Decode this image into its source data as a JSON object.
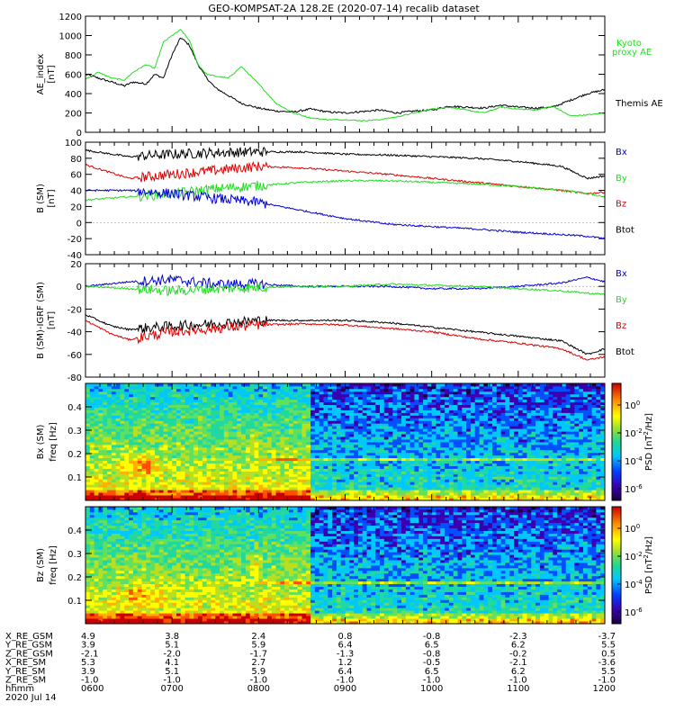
{
  "title": "GEO-KOMPSAT-2A 128.2E (2020-07-14) recalib dataset",
  "colors": {
    "black": "#000000",
    "blue": "#0000d8",
    "green": "#22dd22",
    "red": "#dd0000"
  },
  "time_axis": {
    "start_hour": 6,
    "end_hour": 12
  },
  "chart_data": [
    {
      "type": "line",
      "ylabel": "AE_index",
      "unit": "[nT]",
      "ylim": [
        0,
        1200
      ],
      "ytick_labels": [
        "0",
        "200",
        "400",
        "600",
        "800",
        "1000",
        "1200"
      ],
      "legend": [
        {
          "label": "Kyoto proxy AE",
          "color": "#22dd22",
          "line1": "Kyoto",
          "line2": "proxy AE"
        },
        {
          "label": "Themis AE",
          "color": "#000000"
        }
      ],
      "series": [
        {
          "name": "Themis AE",
          "color": "#000000",
          "x": [
            6.0,
            6.15,
            6.3,
            6.45,
            6.55,
            6.7,
            6.8,
            6.9,
            7.0,
            7.1,
            7.2,
            7.3,
            7.4,
            7.5,
            7.65,
            7.8,
            8.0,
            8.2,
            8.4,
            8.6,
            8.8,
            9.0,
            9.2,
            9.4,
            9.6,
            9.8,
            10.0,
            10.2,
            10.4,
            10.6,
            10.8,
            11.0,
            11.2,
            11.4,
            11.6,
            11.8,
            12.0
          ],
          "values": [
            600,
            560,
            520,
            480,
            520,
            500,
            600,
            560,
            800,
            980,
            900,
            700,
            560,
            460,
            380,
            300,
            250,
            220,
            210,
            240,
            210,
            200,
            215,
            230,
            200,
            220,
            230,
            270,
            260,
            250,
            280,
            260,
            250,
            260,
            330,
            400,
            440
          ]
        },
        {
          "name": "Kyoto proxy AE",
          "color": "#22dd22",
          "x": [
            6.0,
            6.15,
            6.3,
            6.45,
            6.55,
            6.7,
            6.8,
            6.9,
            7.0,
            7.1,
            7.2,
            7.3,
            7.4,
            7.5,
            7.65,
            7.8,
            8.0,
            8.2,
            8.4,
            8.6,
            8.8,
            9.0,
            9.2,
            9.4,
            9.6,
            9.8,
            10.0,
            10.2,
            10.4,
            10.6,
            10.8,
            11.0,
            11.2,
            11.4,
            11.6,
            11.8,
            12.0
          ],
          "values": [
            550,
            620,
            560,
            540,
            620,
            700,
            660,
            930,
            1000,
            1060,
            950,
            700,
            600,
            580,
            560,
            680,
            500,
            300,
            200,
            150,
            130,
            130,
            120,
            130,
            160,
            200,
            240,
            260,
            230,
            200,
            260,
            240,
            230,
            270,
            170,
            180,
            200
          ]
        }
      ]
    },
    {
      "type": "line",
      "ylabel": "B (SM)",
      "unit": "[nT]",
      "ylim": [
        -40,
        100
      ],
      "ytick_labels": [
        "-40",
        "-20",
        "0",
        "20",
        "40",
        "60",
        "80",
        "100"
      ],
      "legend": [
        {
          "label": "Bx",
          "color": "#0000d8"
        },
        {
          "label": "By",
          "color": "#22dd22"
        },
        {
          "label": "Bz",
          "color": "#dd0000"
        },
        {
          "label": "Btot",
          "color": "#000000"
        }
      ],
      "series": [
        {
          "name": "Btot",
          "color": "#000000",
          "x": [
            6,
            6.5,
            7,
            7.5,
            8,
            8.5,
            9,
            9.5,
            10,
            10.5,
            11,
            11.5,
            11.8,
            12
          ],
          "values": [
            90,
            82,
            85,
            87,
            88,
            88,
            85,
            84,
            82,
            80,
            76,
            70,
            55,
            58
          ]
        },
        {
          "name": "Bz",
          "color": "#dd0000",
          "x": [
            6,
            6.5,
            7,
            7.5,
            8,
            8.5,
            9,
            9.5,
            10,
            10.5,
            11,
            11.5,
            11.8,
            12
          ],
          "values": [
            72,
            55,
            60,
            65,
            70,
            68,
            64,
            60,
            55,
            50,
            45,
            40,
            36,
            38
          ]
        },
        {
          "name": "By",
          "color": "#22dd22",
          "x": [
            6,
            6.5,
            7,
            7.5,
            8,
            8.5,
            9,
            9.5,
            10,
            10.5,
            11,
            11.5,
            11.8,
            12
          ],
          "values": [
            28,
            32,
            36,
            42,
            46,
            50,
            52,
            52,
            50,
            48,
            45,
            40,
            36,
            32
          ]
        },
        {
          "name": "Bx",
          "color": "#0000d8",
          "x": [
            6,
            6.5,
            7,
            7.5,
            8,
            8.5,
            9,
            9.5,
            10,
            10.5,
            11,
            11.5,
            11.8,
            12
          ],
          "values": [
            40,
            40,
            36,
            30,
            25,
            15,
            5,
            -2,
            -5,
            -8,
            -12,
            -15,
            -17,
            -20
          ]
        }
      ]
    },
    {
      "type": "line",
      "ylabel": "B (SM)-IGRF (SM)",
      "unit": "[nT]",
      "ylim": [
        -80,
        20
      ],
      "ytick_labels": [
        "-80",
        "-60",
        "-40",
        "-20",
        "0",
        "20"
      ],
      "legend": [
        {
          "label": "Bx",
          "color": "#0000d8"
        },
        {
          "label": "By",
          "color": "#22dd22"
        },
        {
          "label": "Bz",
          "color": "#dd0000"
        },
        {
          "label": "Btot",
          "color": "#000000"
        }
      ],
      "series": [
        {
          "name": "Bx",
          "color": "#0000d8",
          "x": [
            6,
            6.5,
            7,
            7.5,
            8,
            8.5,
            9,
            9.5,
            10,
            10.5,
            11,
            11.5,
            11.8,
            12
          ],
          "values": [
            0,
            4,
            6,
            2,
            2,
            0,
            0,
            0,
            -2,
            -2,
            0,
            3,
            8,
            4
          ]
        },
        {
          "name": "By",
          "color": "#22dd22",
          "x": [
            6,
            6.5,
            7,
            7.5,
            8,
            8.5,
            9,
            9.5,
            10,
            10.5,
            11,
            11.5,
            11.8,
            12
          ],
          "values": [
            0,
            -2,
            -4,
            -2,
            -1,
            0,
            0,
            2,
            1,
            0,
            -2,
            -4,
            -6,
            -7
          ]
        },
        {
          "name": "Btot",
          "color": "#000000",
          "x": [
            6,
            6.3,
            6.5,
            7,
            7.5,
            8,
            8.5,
            9,
            9.5,
            10,
            10.5,
            11,
            11.5,
            11.8,
            12
          ],
          "values": [
            -25,
            -35,
            -38,
            -35,
            -33,
            -30,
            -30,
            -30,
            -32,
            -36,
            -40,
            -44,
            -48,
            -60,
            -55
          ]
        },
        {
          "name": "Bz",
          "color": "#dd0000",
          "x": [
            6,
            6.3,
            6.5,
            7,
            7.5,
            8,
            8.5,
            9,
            9.5,
            10,
            10.5,
            11,
            11.5,
            11.8,
            12
          ],
          "values": [
            -30,
            -42,
            -47,
            -40,
            -37,
            -34,
            -33,
            -34,
            -37,
            -40,
            -46,
            -50,
            -55,
            -65,
            -62
          ]
        }
      ]
    },
    {
      "type": "heatmap",
      "component": "Bx (SM)",
      "ylabel": "freq [Hz]",
      "ylim": [
        0,
        0.5
      ],
      "ytick_labels": [
        "0.1",
        "0.2",
        "0.3",
        "0.4"
      ],
      "colorbar": {
        "label": "PSD [nT^2/Hz]",
        "tick_labels": [
          "10^0",
          "10^-2",
          "10^-4",
          "10^-6"
        ]
      }
    },
    {
      "type": "heatmap",
      "component": "Bz (SM)",
      "ylabel": "freq [Hz]",
      "ylim": [
        0,
        0.5
      ],
      "ytick_labels": [
        "0.1",
        "0.2",
        "0.3",
        "0.4"
      ],
      "colorbar": {
        "label": "PSD [nT^2/Hz]",
        "tick_labels": [
          "10^0",
          "10^-2",
          "10^-4",
          "10^-6"
        ]
      }
    }
  ],
  "orbit_table": {
    "rows": [
      {
        "label": "X_RE_GSM",
        "values": [
          "4.9",
          "3.8",
          "2.4",
          "0.8",
          "-0.8",
          "-2.3",
          "-3.7"
        ]
      },
      {
        "label": "Y_RE_GSM",
        "values": [
          "3.9",
          "5.1",
          "5.9",
          "6.4",
          "6.5",
          "6.2",
          "5.5"
        ]
      },
      {
        "label": "Z_RE_GSM",
        "values": [
          "-2.1",
          "-2.0",
          "-1.7",
          "-1.3",
          "-0.8",
          "-0.2",
          "0.5"
        ]
      },
      {
        "label": "X_RE_SM",
        "values": [
          "5.3",
          "4.1",
          "2.7",
          "1.2",
          "-0.5",
          "-2.1",
          "-3.6"
        ]
      },
      {
        "label": "Y_RE_SM",
        "values": [
          "3.9",
          "5.1",
          "5.9",
          "6.4",
          "6.5",
          "6.2",
          "5.5"
        ]
      },
      {
        "label": "Z_RE_SM",
        "values": [
          "-1.0",
          "-1.0",
          "-1.0",
          "-1.0",
          "-1.0",
          "-1.0",
          "-1.0"
        ]
      },
      {
        "label": "hhmm",
        "values": [
          "0600",
          "0700",
          "0800",
          "0900",
          "1000",
          "1100",
          "1200"
        ]
      }
    ],
    "date": "2020 Jul 14"
  }
}
